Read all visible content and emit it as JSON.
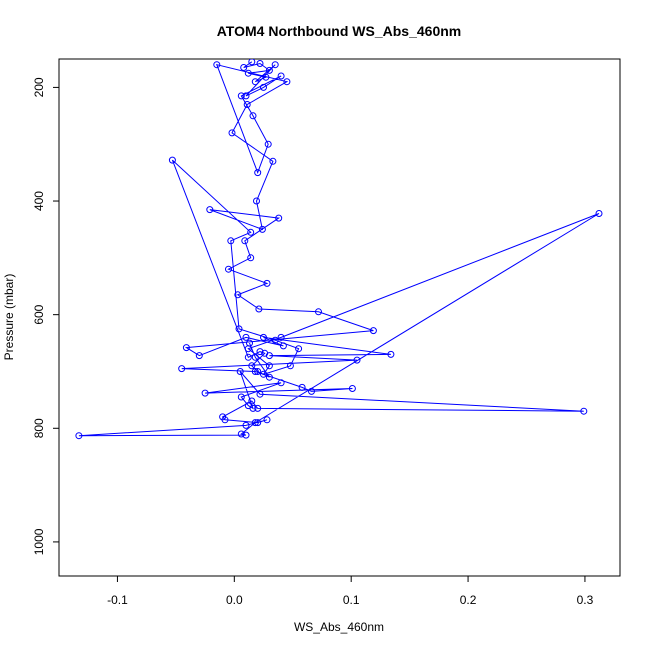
{
  "chart_data": {
    "type": "line",
    "title": "ATOM4 Northbound WS_Abs_460nm",
    "xlabel": "WS_Abs_460nm",
    "ylabel": "Pressure (mbar)",
    "xlim": [
      -0.15,
      0.33
    ],
    "ylim": [
      1060,
      150
    ],
    "y_reversed": true,
    "xticks": [
      -0.1,
      0.0,
      0.1,
      0.2,
      0.3
    ],
    "xtick_labels": [
      "-0.1",
      "0.0",
      "0.1",
      "0.2",
      "0.3"
    ],
    "yticks": [
      200,
      400,
      600,
      800,
      1000
    ],
    "ytick_labels": [
      "200",
      "400",
      "600",
      "800",
      "1000"
    ],
    "grid": false,
    "legend": "none",
    "color": "#0000ff",
    "series": [
      {
        "x": [
          0.015,
          0.008,
          0.022,
          0.03,
          0.012,
          0.027,
          0.018,
          0.035,
          0.01,
          0.025,
          0.04,
          0.006,
          0.016,
          0.029,
          0.02,
          -0.015,
          0.045,
          0.011,
          -0.002,
          0.033,
          0.019,
          0.024,
          -0.021,
          0.038,
          0.009,
          0.014,
          -0.005,
          0.028,
          0.003,
          0.021,
          0.072,
          0.119,
          -0.041,
          -0.03,
          0.01,
          0.042,
          0.025,
          0.134,
          0.03,
          0.105,
          -0.045,
          0.018,
          0.058,
          0.066,
          0.101,
          -0.025,
          0.04,
          0.006,
          0.012,
          0.016,
          0.005,
          0.022,
          0.299,
          0.02,
          0.015,
          -0.01,
          -0.008,
          0.02,
          0.028,
          0.01,
          -0.133,
          0.01,
          0.006,
          0.018,
          0.312,
          0.04,
          0.012,
          0.03,
          0.025,
          0.048,
          0.055,
          0.035,
          0.004,
          -0.003,
          0.014,
          -0.053,
          0.012,
          0.022,
          0.026,
          0.015,
          0.02,
          0.03,
          0.018,
          0.013
        ],
        "y": [
          155,
          165,
          158,
          170,
          175,
          182,
          190,
          160,
          215,
          200,
          180,
          215,
          250,
          300,
          350,
          160,
          190,
          230,
          280,
          330,
          400,
          450,
          415,
          430,
          470,
          500,
          520,
          545,
          565,
          590,
          595,
          628,
          658,
          672,
          640,
          655,
          640,
          670,
          672,
          680,
          695,
          700,
          728,
          735,
          730,
          738,
          720,
          745,
          760,
          765,
          700,
          740,
          770,
          765,
          752,
          780,
          785,
          790,
          785,
          795,
          813,
          812,
          810,
          790,
          422,
          640,
          660,
          690,
          705,
          690,
          660,
          645,
          625,
          470,
          455,
          328,
          675,
          665,
          668,
          690,
          700,
          710,
          675,
          650
        ]
      }
    ]
  }
}
